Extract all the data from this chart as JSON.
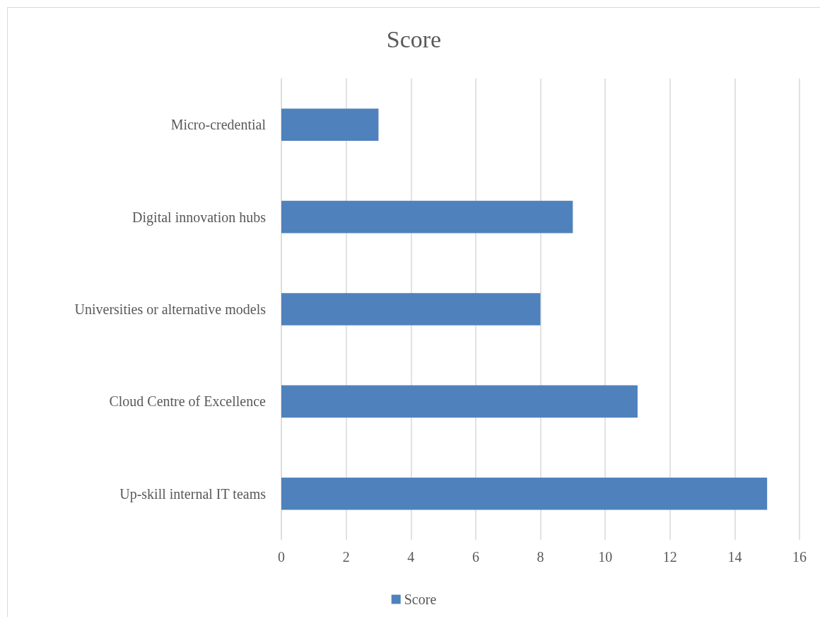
{
  "chart_data": {
    "type": "bar",
    "orientation": "horizontal",
    "title": "Score",
    "categories": [
      "Micro-credential",
      "Digital innovation hubs",
      "Universities or alternative models",
      "Cloud Centre of Excellence",
      "Up-skill internal IT teams"
    ],
    "series": [
      {
        "name": "Score",
        "color": "#4f81bd",
        "values": [
          3,
          9,
          8,
          11,
          15
        ]
      }
    ],
    "xlim": [
      0,
      16
    ],
    "xticks": [
      0,
      2,
      4,
      6,
      8,
      10,
      12,
      14,
      16
    ],
    "grid": "x",
    "legend": "bottom"
  }
}
